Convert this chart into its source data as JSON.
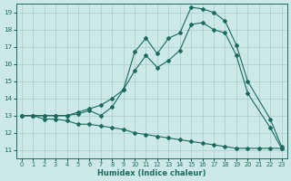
{
  "xlabel": "Humidex (Indice chaleur)",
  "bg_color": "#cce8e8",
  "grid_color": "#aacccc",
  "line_color": "#1a6b5e",
  "xlim": [
    -0.5,
    23.5
  ],
  "ylim": [
    10.5,
    19.5
  ],
  "xticks": [
    0,
    1,
    2,
    3,
    4,
    5,
    6,
    7,
    8,
    9,
    10,
    11,
    12,
    13,
    14,
    15,
    16,
    17,
    18,
    19,
    20,
    21,
    22,
    23
  ],
  "yticks": [
    11,
    12,
    13,
    14,
    15,
    16,
    17,
    18,
    19
  ],
  "line_declining_x": [
    0,
    1,
    2,
    3,
    4,
    5,
    6,
    7,
    8,
    9,
    10,
    11,
    12,
    13,
    14,
    15,
    16,
    17,
    18,
    19,
    20,
    21,
    22,
    23
  ],
  "line_declining_y": [
    13.0,
    13.0,
    12.8,
    12.8,
    12.7,
    12.5,
    12.5,
    12.4,
    12.3,
    12.2,
    12.0,
    11.9,
    11.8,
    11.7,
    11.6,
    11.5,
    11.4,
    11.3,
    11.2,
    11.1,
    11.1,
    11.1,
    11.1,
    11.1
  ],
  "line_upper_x": [
    0,
    1,
    2,
    3,
    4,
    5,
    6,
    7,
    8,
    9,
    10,
    11,
    12,
    13,
    14,
    15,
    16,
    17,
    18,
    19,
    20,
    22,
    23
  ],
  "line_upper_y": [
    13.0,
    13.0,
    13.0,
    13.0,
    13.0,
    13.2,
    13.4,
    13.6,
    14.0,
    14.5,
    16.7,
    17.5,
    16.6,
    17.5,
    17.8,
    19.3,
    19.2,
    19.0,
    18.5,
    17.1,
    15.0,
    12.8,
    11.2
  ],
  "line_middle_x": [
    0,
    1,
    2,
    3,
    4,
    5,
    6,
    7,
    8,
    9,
    10,
    11,
    12,
    13,
    14,
    15,
    16,
    17,
    18,
    19,
    20,
    22,
    23
  ],
  "line_middle_y": [
    13.0,
    13.0,
    13.0,
    13.0,
    13.0,
    13.1,
    13.3,
    13.0,
    13.5,
    14.5,
    15.6,
    16.5,
    15.8,
    16.2,
    16.8,
    18.3,
    18.4,
    18.0,
    17.8,
    16.5,
    14.3,
    12.3,
    11.1
  ]
}
